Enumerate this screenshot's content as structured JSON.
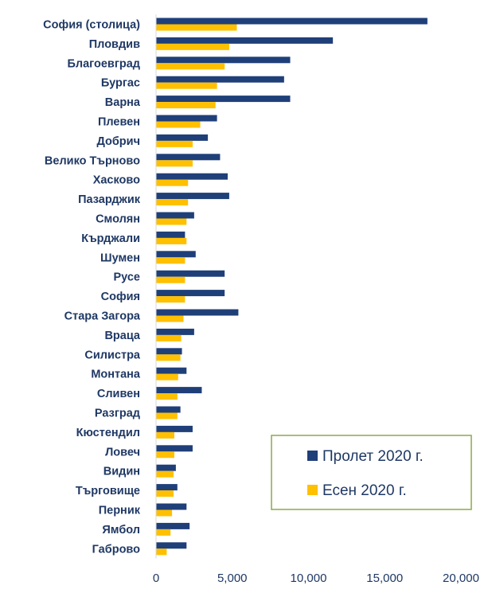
{
  "chart_data": {
    "type": "bar",
    "orientation": "horizontal",
    "categories": [
      "София (столица)",
      "Пловдив",
      "Благоевград",
      "Бургас",
      "Варна",
      "Плевен",
      "Добрич",
      "Велико Търново",
      "Хасково",
      "Пазарджик",
      "Смолян",
      "Кърджали",
      "Шумен",
      "Русе",
      "София",
      "Стара Загора",
      "Враца",
      "Силистра",
      "Монтана",
      "Сливен",
      "Разград",
      "Кюстендил",
      "Ловеч",
      "Видин",
      "Търговище",
      "Перник",
      "Ямбол",
      "Габрово"
    ],
    "series": [
      {
        "name": "Пролет 2020 г.",
        "color": "#1f3f79",
        "values": [
          17800,
          11600,
          8800,
          8400,
          8800,
          4000,
          3400,
          4200,
          4700,
          4800,
          2500,
          1900,
          2600,
          4500,
          4500,
          5400,
          2500,
          1700,
          2000,
          3000,
          1600,
          2400,
          2400,
          1300,
          1400,
          2000,
          2200,
          2000
        ]
      },
      {
        "name": "Есен 2020 г.",
        "color": "#ffc000",
        "values": [
          5300,
          4800,
          4500,
          4000,
          3900,
          2900,
          2400,
          2400,
          2100,
          2100,
          2000,
          2000,
          1900,
          1900,
          1900,
          1800,
          1650,
          1600,
          1450,
          1400,
          1400,
          1200,
          1200,
          1150,
          1150,
          1050,
          950,
          700
        ]
      }
    ],
    "xlim": [
      0,
      20000
    ],
    "xticks": [
      "0",
      "5,000",
      "10,000",
      "15,000",
      "20,000"
    ],
    "grid": false,
    "legend_position": "bottom-right",
    "legend_border_color": "#8aa84a"
  }
}
